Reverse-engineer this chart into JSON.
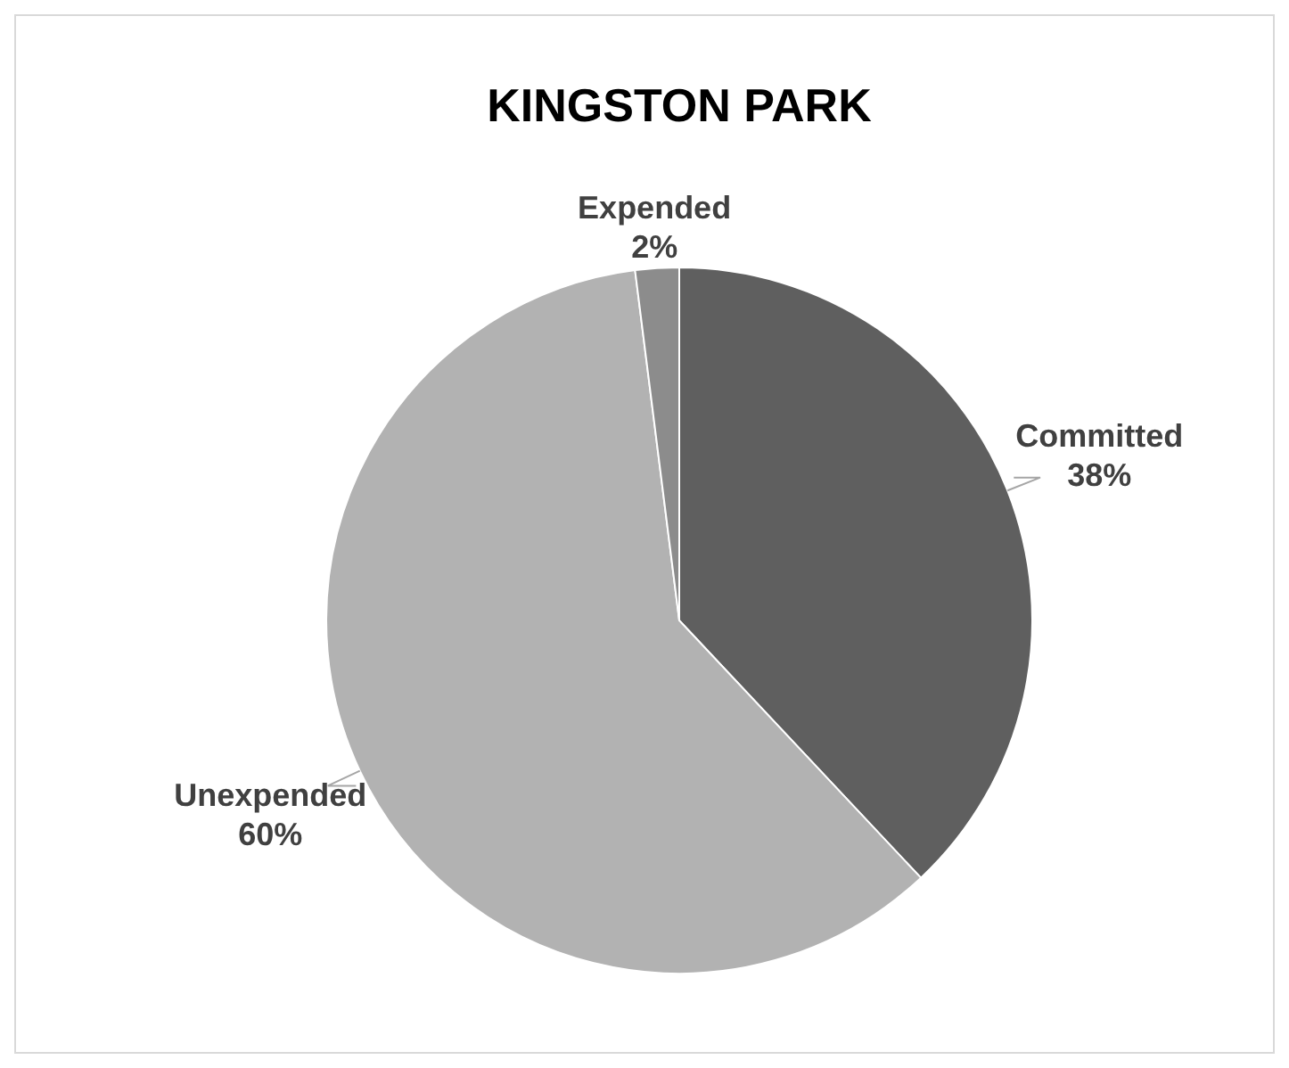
{
  "chart_data": {
    "type": "pie",
    "title": "KINGSTON PARK",
    "categories": [
      "Committed",
      "Unexpended",
      "Expended"
    ],
    "values": [
      38,
      60,
      2
    ],
    "colors": [
      "#5f5f5f",
      "#b2b2b2",
      "#8c8c8c"
    ],
    "value_labels": [
      "38%",
      "60%",
      "2%"
    ]
  }
}
